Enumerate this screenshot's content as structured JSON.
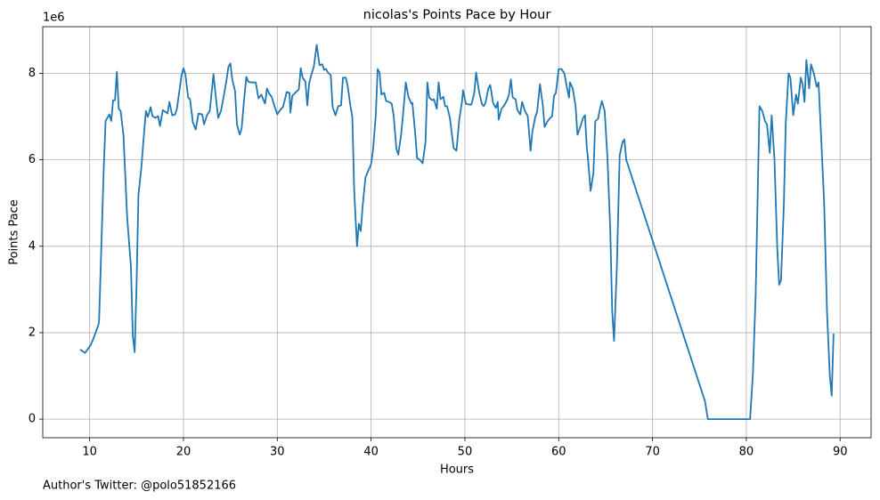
{
  "chart_data": {
    "type": "line",
    "title": "nicolas's Points Pace by Hour",
    "xlabel": "Hours",
    "ylabel": "Points Pace",
    "y_offset_label": "1e6",
    "footnote": "Author's Twitter: @polo51852166",
    "color": "#1f77b4",
    "grid": true,
    "xlim": [
      5.0,
      93.3
    ],
    "ylim": [
      -430000.0,
      9080000.0
    ],
    "xticks": [
      10,
      20,
      30,
      40,
      50,
      60,
      70,
      80,
      90
    ],
    "yticks": [
      0,
      {
        "value": 2000000.0,
        "label": "2"
      },
      {
        "value": 4000000.0,
        "label": "4"
      },
      {
        "value": 6000000.0,
        "label": "6"
      },
      {
        "value": 8000000.0,
        "label": "8"
      }
    ],
    "x": [
      9.0,
      9.5,
      10.1,
      10.5,
      10.9,
      11.0,
      11.5,
      11.7,
      12.1,
      12.3,
      12.5,
      12.7,
      12.9,
      13.1,
      13.3,
      13.6,
      14.0,
      14.4,
      14.6,
      14.8,
      15.0,
      15.2,
      15.5,
      15.8,
      16.0,
      16.2,
      16.5,
      16.7,
      17.0,
      17.3,
      17.5,
      17.8,
      18.2,
      18.3,
      18.5,
      18.8,
      19.1,
      19.3,
      19.6,
      19.8,
      20.0,
      20.2,
      20.5,
      20.7,
      21.0,
      21.3,
      21.6,
      22.0,
      22.2,
      22.5,
      22.8,
      23.2,
      23.4,
      23.7,
      24.0,
      24.3,
      24.6,
      24.8,
      25.0,
      25.2,
      25.5,
      25.7,
      26.0,
      26.2,
      26.4,
      26.7,
      26.9,
      27.2,
      27.5,
      27.7,
      28.0,
      28.3,
      28.5,
      28.7,
      28.9,
      29.2,
      29.4,
      29.7,
      30.0,
      30.3,
      30.6,
      30.8,
      31.0,
      31.3,
      31.4,
      31.6,
      32.0,
      32.3,
      32.5,
      32.7,
      33.0,
      33.2,
      33.4,
      33.6,
      33.9,
      34.2,
      34.5,
      34.8,
      35.0,
      35.2,
      35.4,
      35.7,
      35.9,
      36.2,
      36.5,
      36.8,
      37.0,
      37.3,
      37.5,
      37.8,
      38.0,
      38.2,
      38.5,
      38.7,
      38.9,
      39.1,
      39.4,
      39.7,
      40.0,
      40.2,
      40.5,
      40.7,
      40.9,
      41.1,
      41.4,
      41.6,
      41.9,
      42.2,
      42.4,
      42.7,
      42.9,
      43.2,
      43.4,
      43.7,
      44.0,
      44.3,
      44.4,
      44.7,
      44.9,
      45.2,
      45.5,
      45.8,
      46.0,
      46.2,
      46.5,
      46.7,
      47.0,
      47.2,
      47.4,
      47.7,
      47.9,
      48.1,
      48.4,
      48.8,
      49.1,
      49.4,
      49.7,
      49.8,
      50.1,
      50.4,
      50.7,
      51.0,
      51.2,
      51.5,
      51.8,
      52.0,
      52.2,
      52.5,
      52.7,
      53.0,
      53.3,
      53.5,
      53.6,
      53.9,
      54.2,
      54.5,
      54.7,
      54.9,
      55.1,
      55.4,
      55.6,
      55.9,
      56.1,
      56.4,
      56.7,
      57.0,
      57.2,
      57.5,
      57.7,
      58.0,
      58.3,
      58.5,
      58.8,
      59.1,
      59.3,
      59.5,
      59.7,
      60.0,
      60.3,
      60.6,
      60.9,
      61.1,
      61.2,
      61.5,
      61.8,
      62.0,
      62.3,
      62.6,
      62.8,
      63.0,
      63.1,
      63.4,
      63.7,
      63.9,
      64.2,
      64.4,
      64.6,
      64.9,
      65.2,
      65.5,
      65.7,
      65.9,
      66.2,
      66.5,
      66.8,
      67.0,
      67.2,
      75.6,
      75.9,
      80.4,
      80.7,
      81.0,
      81.4,
      81.7,
      82.0,
      82.2,
      82.5,
      82.7,
      83.0,
      83.3,
      83.5,
      83.7,
      84.0,
      84.2,
      84.5,
      84.7,
      85.0,
      85.3,
      85.5,
      85.8,
      86.0,
      86.2,
      86.4,
      86.7,
      86.9,
      87.2,
      87.5,
      87.7,
      88.0,
      88.3,
      88.6,
      88.9,
      89.1,
      89.3
    ],
    "values": [
      1610000.0,
      1530000.0,
      1710000.0,
      1920000.0,
      2160000.0,
      2250000.0,
      5800000.0,
      6900000.0,
      7050000.0,
      6900000.0,
      7380000.0,
      7380000.0,
      8040000.0,
      7180000.0,
      7130000.0,
      6580000.0,
      4660000.0,
      3530000.0,
      1920000.0,
      1550000.0,
      3100000.0,
      5180000.0,
      5800000.0,
      6620000.0,
      7130000.0,
      6990000.0,
      7220000.0,
      7010000.0,
      6970000.0,
      7010000.0,
      6780000.0,
      7150000.0,
      7090000.0,
      7070000.0,
      7340000.0,
      7030000.0,
      7050000.0,
      7180000.0,
      7650000.0,
      7960000.0,
      8120000.0,
      7980000.0,
      7440000.0,
      7400000.0,
      6870000.0,
      6700000.0,
      7070000.0,
      7050000.0,
      6820000.0,
      7030000.0,
      7130000.0,
      7980000.0,
      7550000.0,
      6970000.0,
      7130000.0,
      7480000.0,
      7860000.0,
      8160000.0,
      8230000.0,
      7860000.0,
      7590000.0,
      6820000.0,
      6580000.0,
      6720000.0,
      7240000.0,
      7920000.0,
      7810000.0,
      7790000.0,
      7790000.0,
      7790000.0,
      7420000.0,
      7510000.0,
      7400000.0,
      7300000.0,
      7650000.0,
      7510000.0,
      7460000.0,
      7240000.0,
      7050000.0,
      7150000.0,
      7220000.0,
      7380000.0,
      7570000.0,
      7550000.0,
      7090000.0,
      7480000.0,
      7570000.0,
      7630000.0,
      8120000.0,
      7900000.0,
      7810000.0,
      7260000.0,
      7770000.0,
      7940000.0,
      8160000.0,
      8660000.0,
      8190000.0,
      8210000.0,
      8080000.0,
      8100000.0,
      8020000.0,
      7960000.0,
      7220000.0,
      7030000.0,
      7240000.0,
      7260000.0,
      7900000.0,
      7900000.0,
      7710000.0,
      7240000.0,
      6990000.0,
      5280000.0,
      4000000.0,
      4520000.0,
      4350000.0,
      4930000.0,
      5590000.0,
      5750000.0,
      5900000.0,
      6210000.0,
      7030000.0,
      8100000.0,
      8020000.0,
      7510000.0,
      7550000.0,
      7360000.0,
      7340000.0,
      7300000.0,
      7030000.0,
      6250000.0,
      6120000.0,
      6580000.0,
      7030000.0,
      7790000.0,
      7440000.0,
      7300000.0,
      7320000.0,
      6620000.0,
      6040000.0,
      6000000.0,
      5920000.0,
      6410000.0,
      7790000.0,
      7440000.0,
      7380000.0,
      7400000.0,
      7180000.0,
      7790000.0,
      7400000.0,
      7460000.0,
      7240000.0,
      7240000.0,
      6970000.0,
      6270000.0,
      6210000.0,
      6930000.0,
      7360000.0,
      7610000.0,
      7300000.0,
      7280000.0,
      7280000.0,
      7550000.0,
      8020000.0,
      7590000.0,
      7300000.0,
      7240000.0,
      7320000.0,
      7650000.0,
      7730000.0,
      7320000.0,
      7200000.0,
      7340000.0,
      6930000.0,
      7180000.0,
      7260000.0,
      7380000.0,
      7510000.0,
      7860000.0,
      7440000.0,
      7400000.0,
      7150000.0,
      7050000.0,
      7340000.0,
      7130000.0,
      7010000.0,
      6210000.0,
      6660000.0,
      6990000.0,
      7110000.0,
      7750000.0,
      7280000.0,
      6760000.0,
      6890000.0,
      6970000.0,
      7010000.0,
      7480000.0,
      7550000.0,
      8100000.0,
      8100000.0,
      8000000.0,
      7650000.0,
      7440000.0,
      7790000.0,
      7650000.0,
      7240000.0,
      6580000.0,
      6760000.0,
      6970000.0,
      7030000.0,
      6270000.0,
      6080000.0,
      5280000.0,
      5690000.0,
      6890000.0,
      6950000.0,
      7180000.0,
      7360000.0,
      7130000.0,
      6040000.0,
      4350000.0,
      2490000.0,
      1810000.0,
      3530000.0,
      6100000.0,
      6410000.0,
      6470000.0,
      6000000.0,
      410000.0,
      0,
      0,
      1050000.0,
      2910000.0,
      7240000.0,
      7130000.0,
      6890000.0,
      6820000.0,
      6160000.0,
      7030000.0,
      6000000.0,
      3940000.0,
      3110000.0,
      3220000.0,
      4970000.0,
      6820000.0,
      8000000.0,
      7900000.0,
      7030000.0,
      7510000.0,
      7300000.0,
      7900000.0,
      7750000.0,
      7340000.0,
      8310000.0,
      7650000.0,
      8210000.0,
      8000000.0,
      7690000.0,
      7790000.0,
      6410000.0,
      4970000.0,
      2490000.0,
      1010000.0,
      540000.0,
      1980000.0
    ]
  }
}
